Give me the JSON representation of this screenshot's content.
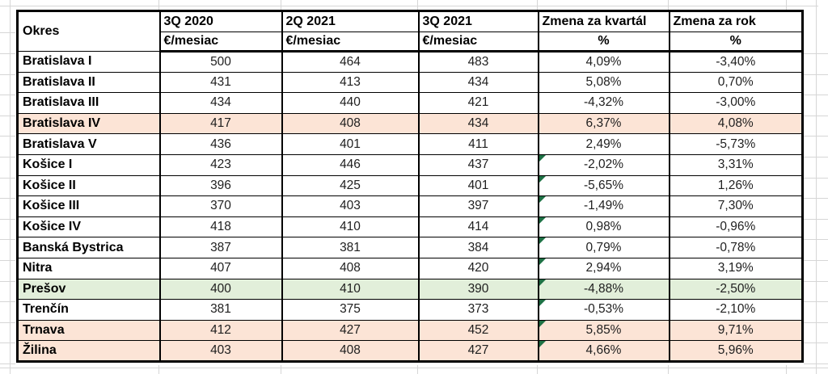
{
  "colors": {
    "highlight_peach": "#FCE4D6",
    "highlight_green": "#E2EFDA",
    "error_triangle_green": "#1E7145",
    "table_border": "#000000",
    "sheet_gridline": "#D6D6D6"
  },
  "table": {
    "corner_header": "Okres",
    "columns": [
      {
        "label": "3Q 2020",
        "sub": "€/mesiac"
      },
      {
        "label": "2Q 2021",
        "sub": "€/mesiac"
      },
      {
        "label": "3Q 2021",
        "sub": "€/mesiac"
      },
      {
        "label": "Zmena za kvartál",
        "sub": "%"
      },
      {
        "label": "Zmena za rok",
        "sub": "%"
      }
    ],
    "rows": [
      {
        "okres": "Bratislava I",
        "values": [
          "500",
          "464",
          "483",
          "4,09%",
          "-3,40%"
        ],
        "highlight": "none",
        "flag_kvartal": false
      },
      {
        "okres": "Bratislava II",
        "values": [
          "431",
          "413",
          "434",
          "5,08%",
          "0,70%"
        ],
        "highlight": "none",
        "flag_kvartal": false
      },
      {
        "okres": "Bratislava III",
        "values": [
          "434",
          "440",
          "421",
          "-4,32%",
          "-3,00%"
        ],
        "highlight": "none",
        "flag_kvartal": false
      },
      {
        "okres": "Bratislava IV",
        "values": [
          "417",
          "408",
          "434",
          "6,37%",
          "4,08%"
        ],
        "highlight": "peach",
        "flag_kvartal": false
      },
      {
        "okres": "Bratislava V",
        "values": [
          "436",
          "401",
          "411",
          "2,49%",
          "-5,73%"
        ],
        "highlight": "none",
        "flag_kvartal": false
      },
      {
        "okres": "Košice I",
        "values": [
          "423",
          "446",
          "437",
          "-2,02%",
          "3,31%"
        ],
        "highlight": "none",
        "flag_kvartal": true
      },
      {
        "okres": "Košice II",
        "values": [
          "396",
          "425",
          "401",
          "-5,65%",
          "1,26%"
        ],
        "highlight": "none",
        "flag_kvartal": true
      },
      {
        "okres": "Košice III",
        "values": [
          "370",
          "403",
          "397",
          "-1,49%",
          "7,30%"
        ],
        "highlight": "none",
        "flag_kvartal": true
      },
      {
        "okres": "Košice IV",
        "values": [
          "418",
          "410",
          "414",
          "0,98%",
          "-0,96%"
        ],
        "highlight": "none",
        "flag_kvartal": true
      },
      {
        "okres": "Banská Bystrica",
        "values": [
          "387",
          "381",
          "384",
          "0,79%",
          "-0,78%"
        ],
        "highlight": "none",
        "flag_kvartal": true
      },
      {
        "okres": "Nitra",
        "values": [
          "407",
          "408",
          "420",
          "2,94%",
          "3,19%"
        ],
        "highlight": "none",
        "flag_kvartal": true
      },
      {
        "okres": "Prešov",
        "values": [
          "400",
          "410",
          "390",
          "-4,88%",
          "-2,50%"
        ],
        "highlight": "green",
        "flag_kvartal": true
      },
      {
        "okres": "Trenčín",
        "values": [
          "381",
          "375",
          "373",
          "-0,53%",
          "-2,10%"
        ],
        "highlight": "none",
        "flag_kvartal": true
      },
      {
        "okres": "Trnava",
        "values": [
          "412",
          "427",
          "452",
          "5,85%",
          "9,71%"
        ],
        "highlight": "peach",
        "flag_kvartal": true
      },
      {
        "okres": "Žilina",
        "values": [
          "403",
          "408",
          "427",
          "4,66%",
          "5,96%"
        ],
        "highlight": "peach",
        "flag_kvartal": true
      }
    ]
  }
}
